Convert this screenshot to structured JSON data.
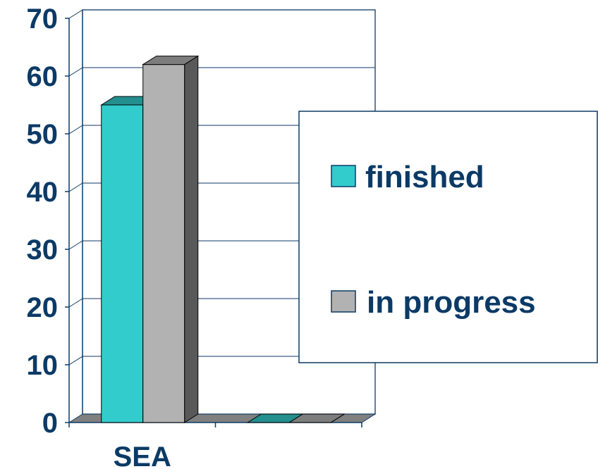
{
  "chart_data": {
    "type": "bar",
    "categories": [
      "SEA",
      ""
    ],
    "series": [
      {
        "name": "finished",
        "values": [
          55,
          0
        ]
      },
      {
        "name": "in progress",
        "values": [
          62,
          0
        ]
      }
    ],
    "ylim": [
      0,
      70
    ],
    "yticks": [
      0,
      10,
      20,
      30,
      40,
      50,
      60,
      70
    ],
    "grid": true,
    "legend_position": "right",
    "three_d": true,
    "colors": {
      "finished": "#33CCCC",
      "in progress": "#B2B2B2",
      "text": "#0B3A66",
      "axis": "#0B3A66",
      "grid": "#0B3A66",
      "floor": "#808080",
      "side": "#595959"
    }
  }
}
